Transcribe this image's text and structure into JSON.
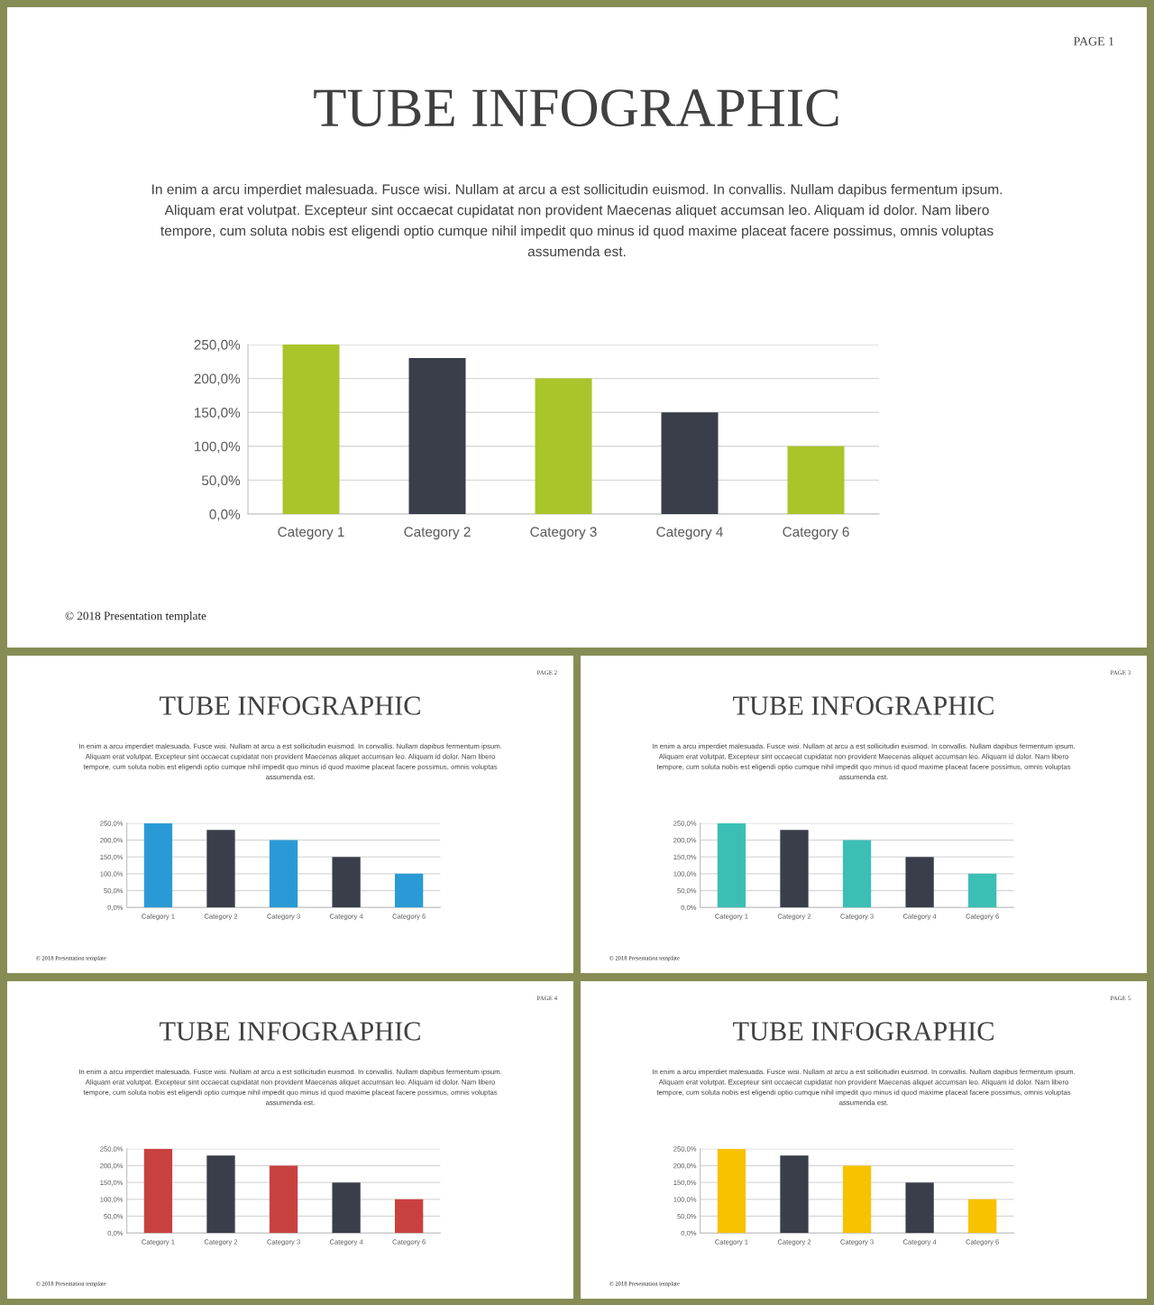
{
  "chart_data": [
    {
      "type": "bar",
      "title": "TUBE INFOGRAPHIC",
      "subtitle": "In enim a arcu imperdiet malesuada. Fusce wisi. Nullam at arcu a est sollicitudin euismod. In convallis. Nullam dapibus fermentum ipsum.\nAliquam erat volutpat. Excepteur sint occaecat cupidatat non provident Maecenas aliquet accumsan leo. Aliquam id dolor. Nam libero\ntempore, cum soluta nobis est eligendi optio cumque nihil impedit quo minus id quod maxime placeat facere possimus, omnis voluptas\nassumenda est.",
      "annotations": [
        "PAGE 1",
        "© 2018 Presentation template"
      ],
      "categories": [
        "Category 1",
        "Category 2",
        "Category 3",
        "Category 4",
        "Category 6"
      ],
      "values": [
        250,
        230,
        200,
        150,
        100
      ],
      "colors": [
        "#a9c52a",
        "#3a3e4a",
        "#a9c52a",
        "#3a3e4a",
        "#a9c52a"
      ],
      "ylim": [
        0,
        250
      ],
      "yticks": [
        {
          "value": 0,
          "label": "0,0%"
        },
        {
          "value": 50,
          "label": "50,0%"
        },
        {
          "value": 100,
          "label": "100,0%"
        },
        {
          "value": 150,
          "label": "150,0%"
        },
        {
          "value": 200,
          "label": "200,0%"
        },
        {
          "value": 250,
          "label": "250,0%"
        }
      ],
      "grid": "y"
    },
    {
      "type": "bar",
      "title": "TUBE INFOGRAPHIC",
      "subtitle": "In enim a arcu imperdiet malesuada. Fusce wisi. Nullam at arcu a est sollicitudin euismod. In convallis. Nullam dapibus fermentum ipsum.\nAliquam erat volutpat. Excepteur sint occaecat cupidatat non provident Maecenas aliquet accumsan leo. Aliquam id dolor. Nam libero\ntempore, cum soluta nobis est eligendi optio cumque nihil impedit quo minus id quod maxime placeat facere possimus, omnis voluptas\nassumenda est.",
      "annotations": [
        "PAGE 2",
        "© 2018 Presentation template"
      ],
      "categories": [
        "Category 1",
        "Category 2",
        "Category 3",
        "Category 4",
        "Category 6"
      ],
      "values": [
        250,
        230,
        200,
        150,
        100
      ],
      "colors": [
        "#2a9ad6",
        "#3a3e4a",
        "#2a9ad6",
        "#3a3e4a",
        "#2a9ad6"
      ],
      "ylim": [
        0,
        250
      ],
      "yticks": [
        {
          "value": 0,
          "label": "0,0%"
        },
        {
          "value": 50,
          "label": "50,0%"
        },
        {
          "value": 100,
          "label": "100,0%"
        },
        {
          "value": 150,
          "label": "150,0%"
        },
        {
          "value": 200,
          "label": "200,0%"
        },
        {
          "value": 250,
          "label": "250,0%"
        }
      ],
      "grid": "y"
    },
    {
      "type": "bar",
      "title": "TUBE INFOGRAPHIC",
      "subtitle": "In enim a arcu imperdiet malesuada. Fusce wisi. Nullam at arcu a est sollicitudin euismod. In convallis. Nullam dapibus fermentum ipsum.\nAliquam erat volutpat. Excepteur sint occaecat cupidatat non provident Maecenas aliquet accumsan leo. Aliquam id dolor. Nam libero\ntempore, cum soluta nobis est eligendi optio cumque nihil impedit quo minus id quod maxime placeat facere possimus, omnis voluptas\nassumenda est.",
      "annotations": [
        "PAGE 3",
        "© 2018 Presentation template"
      ],
      "categories": [
        "Category 1",
        "Category 2",
        "Category 3",
        "Category 4",
        "Category 6"
      ],
      "values": [
        250,
        230,
        200,
        150,
        100
      ],
      "colors": [
        "#3bbfb5",
        "#3a3e4a",
        "#3bbfb5",
        "#3a3e4a",
        "#3bbfb5"
      ],
      "ylim": [
        0,
        250
      ],
      "yticks": [
        {
          "value": 0,
          "label": "0,0%"
        },
        {
          "value": 50,
          "label": "50,0%"
        },
        {
          "value": 100,
          "label": "100,0%"
        },
        {
          "value": 150,
          "label": "150,0%"
        },
        {
          "value": 200,
          "label": "200,0%"
        },
        {
          "value": 250,
          "label": "250,0%"
        }
      ],
      "grid": "y"
    },
    {
      "type": "bar",
      "title": "TUBE INFOGRAPHIC",
      "subtitle": "In enim a arcu imperdiet malesuada. Fusce wisi. Nullam at arcu a est sollicitudin euismod. In convallis. Nullam dapibus fermentum ipsum.\nAliquam erat volutpat. Excepteur sint occaecat cupidatat non provident Maecenas aliquet accumsan leo. Aliquam id dolor. Nam libero\ntempore, cum soluta nobis est eligendi optio cumque nihil impedit quo minus id quod maxime placeat facere possimus, omnis voluptas\nassumenda est.",
      "annotations": [
        "PAGE 4",
        "© 2018 Presentation template"
      ],
      "categories": [
        "Category 1",
        "Category 2",
        "Category 3",
        "Category 4",
        "Category 6"
      ],
      "values": [
        250,
        230,
        200,
        150,
        100
      ],
      "colors": [
        "#c9413f",
        "#3a3e4a",
        "#c9413f",
        "#3a3e4a",
        "#c9413f"
      ],
      "ylim": [
        0,
        250
      ],
      "yticks": [
        {
          "value": 0,
          "label": "0,0%"
        },
        {
          "value": 50,
          "label": "50,0%"
        },
        {
          "value": 100,
          "label": "100,0%"
        },
        {
          "value": 150,
          "label": "150,0%"
        },
        {
          "value": 200,
          "label": "200,0%"
        },
        {
          "value": 250,
          "label": "250,0%"
        }
      ],
      "grid": "y"
    },
    {
      "type": "bar",
      "title": "TUBE INFOGRAPHIC",
      "subtitle": "In enim a arcu imperdiet malesuada. Fusce wisi. Nullam at arcu a est sollicitudin euismod. In convallis. Nullam dapibus fermentum ipsum.\nAliquam erat volutpat. Excepteur sint occaecat cupidatat non provident Maecenas aliquet accumsan leo. Aliquam id dolor. Nam libero\ntempore, cum soluta nobis est eligendi optio cumque nihil impedit quo minus id quod maxime placeat facere possimus, omnis voluptas\nassumenda est.",
      "annotations": [
        "PAGE 5",
        "© 2018 Presentation template"
      ],
      "categories": [
        "Category 1",
        "Category 2",
        "Category 3",
        "Category 4",
        "Category 6"
      ],
      "values": [
        250,
        230,
        200,
        150,
        100
      ],
      "colors": [
        "#f7c200",
        "#3a3e4a",
        "#f7c200",
        "#3a3e4a",
        "#f7c200"
      ],
      "ylim": [
        0,
        250
      ],
      "yticks": [
        {
          "value": 0,
          "label": "0,0%"
        },
        {
          "value": 50,
          "label": "50,0%"
        },
        {
          "value": 100,
          "label": "100,0%"
        },
        {
          "value": 150,
          "label": "150,0%"
        },
        {
          "value": 200,
          "label": "200,0%"
        },
        {
          "value": 250,
          "label": "250,0%"
        }
      ],
      "grid": "y"
    }
  ]
}
